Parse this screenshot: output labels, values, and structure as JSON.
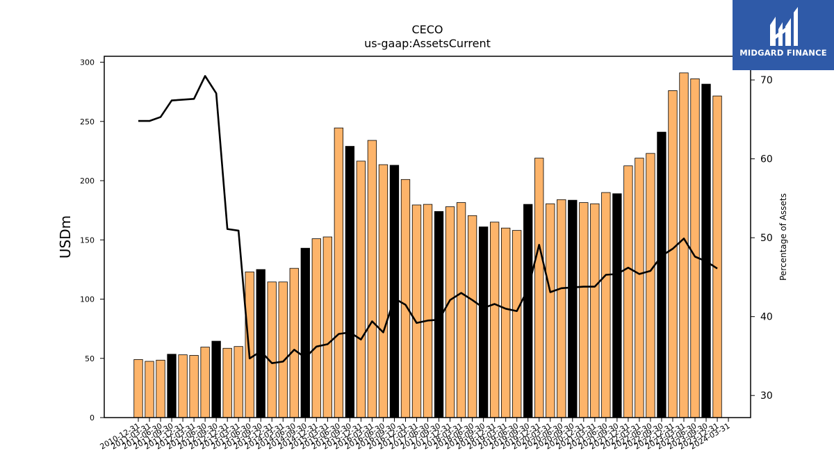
{
  "branding": {
    "logo_text": "MIDGARD FINANCE",
    "logo_icon": "midgard-logo-icon",
    "logo_color": "#2f5aa8"
  },
  "chart_data": {
    "type": "bar",
    "title": "CECO",
    "subtitle": "us-gaap:AssetsCurrent",
    "ylabel": "USDm",
    "y2label": "Percentage of Assets",
    "ylim": [
      0,
      305
    ],
    "y2lim": [
      27.2,
      73.0
    ],
    "yticks": [
      0,
      50,
      100,
      150,
      200,
      250,
      300
    ],
    "y2ticks": [
      30,
      40,
      50,
      60,
      70
    ],
    "colors": {
      "bar": "#fdb46a",
      "bar_highlight": "#000000",
      "line": "#000000"
    },
    "categories": [
      "2010-12-31",
      "2011-03-31",
      "2011-06-30",
      "2011-09-30",
      "2011-12-31",
      "2012-03-31",
      "2012-06-30",
      "2012-09-30",
      "2012-12-31",
      "2013-03-31",
      "2013-06-30",
      "2013-09-30",
      "2013-12-31",
      "2014-03-31",
      "2014-06-30",
      "2014-09-30",
      "2014-12-31",
      "2015-03-31",
      "2015-06-30",
      "2015-09-30",
      "2015-12-31",
      "2016-03-31",
      "2016-06-30",
      "2016-09-30",
      "2016-12-31",
      "2017-03-31",
      "2017-06-30",
      "2017-09-30",
      "2017-12-31",
      "2018-03-31",
      "2018-06-30",
      "2018-09-30",
      "2018-12-31",
      "2019-03-31",
      "2019-06-30",
      "2019-09-30",
      "2019-12-31",
      "2020-03-31",
      "2020-06-30",
      "2020-09-30",
      "2020-12-31",
      "2021-03-31",
      "2021-06-30",
      "2021-09-30",
      "2021-12-31",
      "2022-03-31",
      "2022-06-30",
      "2022-09-30",
      "2022-12-31",
      "2023-03-31",
      "2023-06-30",
      "2023-09-30",
      "2023-12-31",
      "2024-03-31"
    ],
    "highlight": [
      false,
      false,
      false,
      true,
      false,
      false,
      false,
      true,
      false,
      false,
      false,
      true,
      false,
      false,
      false,
      true,
      false,
      false,
      false,
      true,
      false,
      false,
      false,
      true,
      false,
      false,
      false,
      true,
      false,
      false,
      false,
      true,
      false,
      false,
      false,
      true,
      false,
      false,
      false,
      true,
      false,
      false,
      false,
      true,
      false,
      false,
      false,
      true,
      false,
      false,
      false,
      true,
      false,
      false
    ],
    "series": [
      {
        "name": "",
        "type": "bar",
        "axis": "left",
        "values": [
          49,
          47.5,
          48.5,
          53.5,
          53,
          52.5,
          59.5,
          64.5,
          58.5,
          60,
          123,
          125,
          114.5,
          114.5,
          126,
          143,
          151,
          152.5,
          244.5,
          229,
          216.5,
          234,
          213.5,
          213,
          201,
          179.5,
          180,
          174,
          178,
          181.5,
          170.5,
          161,
          165,
          160,
          158,
          180,
          219,
          180.5,
          184,
          183.5,
          181.5,
          180.5,
          190,
          189,
          212.5,
          219,
          223,
          241,
          276,
          291,
          286,
          281.5,
          271.5,
          null
        ]
      },
      {
        "name": "",
        "type": "line",
        "axis": "right",
        "values": [
          64.8,
          64.8,
          65.3,
          67.4,
          67.5,
          67.6,
          70.5,
          68.3,
          51.1,
          50.9,
          34.7,
          35.6,
          34.1,
          34.3,
          35.8,
          34.8,
          36.2,
          36.5,
          37.8,
          38.0,
          37.1,
          39.4,
          38.0,
          42.3,
          41.5,
          39.2,
          39.5,
          39.6,
          42.1,
          43.0,
          42.1,
          41.1,
          41.6,
          41.0,
          40.7,
          43.5,
          49.1,
          43.1,
          43.6,
          43.7,
          43.8,
          43.8,
          45.3,
          45.4,
          46.2,
          45.4,
          45.8,
          47.7,
          48.6,
          49.9,
          47.6,
          47.0,
          46.1,
          null
        ]
      }
    ]
  }
}
